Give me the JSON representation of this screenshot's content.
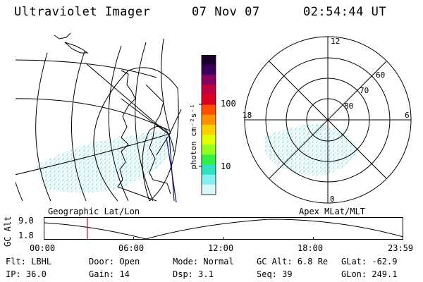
{
  "header": {
    "instrument": "Ultraviolet Imager",
    "date": "07 Nov 07",
    "time": "02:54:44 UT"
  },
  "colorbar": {
    "unit_label": "photon cm⁻²s⁻¹",
    "ticks": [
      "100",
      "10"
    ],
    "colors": [
      "#1a0030",
      "#3a0060",
      "#8a0060",
      "#c00040",
      "#e00020",
      "#ff5000",
      "#ff9000",
      "#ffd000",
      "#e0ff00",
      "#90ff20",
      "#30f040",
      "#30e0c0",
      "#80f0f0",
      "#d8f8f8"
    ]
  },
  "polar": {
    "mlt_labels": {
      "top": "12",
      "right": "6",
      "bottom": "0",
      "left": "18"
    },
    "lat_labels": [
      "60",
      "70",
      "80"
    ]
  },
  "map_labels": {
    "left": "Geographic Lat/Lon",
    "right": "Apex MLat/MLT"
  },
  "timeline": {
    "ylabel": "GC Alt",
    "y_ticks": [
      "9.0",
      "1.8"
    ],
    "x_ticks": [
      "00:00",
      "06:00",
      "12:00",
      "18:00",
      "23:59"
    ],
    "marker_time": "02:54:44"
  },
  "info": {
    "row1": [
      {
        "label": "Flt:",
        "value": "LBHL"
      },
      {
        "label": "Door:",
        "value": "Open"
      },
      {
        "label": "Mode:",
        "value": "Normal"
      },
      {
        "label": "GC Alt:",
        "value": "6.8 Re"
      },
      {
        "label": "GLat:",
        "value": "-62.9"
      }
    ],
    "row2": [
      {
        "label": "IP:",
        "value": "36.0"
      },
      {
        "label": "Gain:",
        "value": "14"
      },
      {
        "label": "Dsp:",
        "value": "3.1"
      },
      {
        "label": "Seq:",
        "value": "39"
      },
      {
        "label": "GLon:",
        "value": "249.1"
      }
    ]
  }
}
